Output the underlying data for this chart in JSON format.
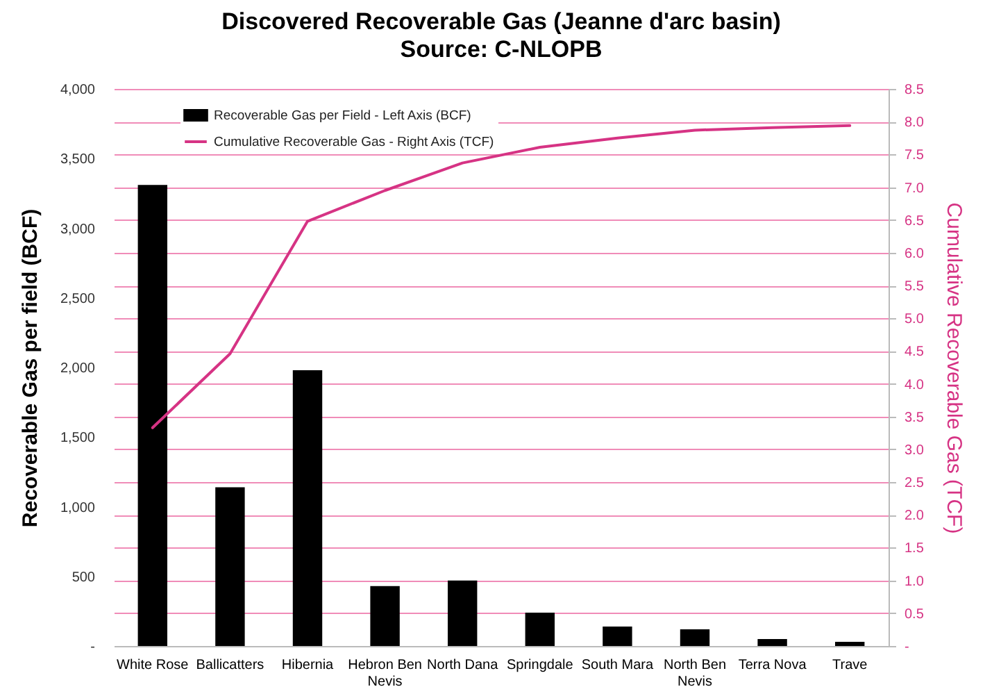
{
  "chart_data": {
    "type": "bar",
    "title": "Discovered Recoverable Gas (Jeanne d'arc basin)",
    "subtitle": "Source:  C-NLOPB",
    "ylabel": "Recoverable Gas per field (BCF)",
    "y2label": "Cumulative Recoverable Gas (TCF)",
    "categories": [
      "White Rose",
      "Ballicatters",
      "Hibernia",
      "Hebron Ben Nevis",
      "North Dana",
      "Springdale",
      "South Mara",
      "North Ben Nevis",
      "Terra Nova",
      "Trave"
    ],
    "series": [
      {
        "name": "Recoverable Gas per Field - Left Axis (BCF)",
        "color": "#000000",
        "values": [
          3310,
          1140,
          1980,
          430,
          470,
          240,
          140,
          120,
          50,
          30
        ]
      },
      {
        "name": "Cumulative Recoverable Gas - Right Axis (TCF)",
        "type": "line",
        "axis": "y2",
        "color": "#d63384",
        "values": [
          3.33,
          4.46,
          6.48,
          6.95,
          7.37,
          7.61,
          7.75,
          7.87,
          7.91,
          7.94
        ]
      }
    ],
    "ylim": [
      0,
      4000
    ],
    "yticks": [
      {
        "value": 0,
        "label": "-"
      },
      {
        "value": 500,
        "label": "500"
      },
      {
        "value": 1000,
        "label": "1,000"
      },
      {
        "value": 1500,
        "label": "1,500"
      },
      {
        "value": 2000,
        "label": "2,000"
      },
      {
        "value": 2500,
        "label": "2,500"
      },
      {
        "value": 3000,
        "label": "3,000"
      },
      {
        "value": 3500,
        "label": "3,500"
      },
      {
        "value": 4000,
        "label": "4,000"
      }
    ],
    "y2lim": [
      0,
      8.5
    ],
    "y2ticks": [
      {
        "value": 0,
        "label": "-"
      },
      {
        "value": 0.5,
        "label": "0.5"
      },
      {
        "value": 1,
        "label": "1.0"
      },
      {
        "value": 1.5,
        "label": "1.5"
      },
      {
        "value": 2,
        "label": "2.0"
      },
      {
        "value": 2.5,
        "label": "2.5"
      },
      {
        "value": 3,
        "label": "3.0"
      },
      {
        "value": 3.5,
        "label": "3.5"
      },
      {
        "value": 4,
        "label": "4.0"
      },
      {
        "value": 4.5,
        "label": "4.5"
      },
      {
        "value": 5,
        "label": "5.0"
      },
      {
        "value": 5.5,
        "label": "5.5"
      },
      {
        "value": 6,
        "label": "6.0"
      },
      {
        "value": 6.5,
        "label": "6.5"
      },
      {
        "value": 7,
        "label": "7.0"
      },
      {
        "value": 7.5,
        "label": "7.5"
      },
      {
        "value": 8,
        "label": "8.0"
      },
      {
        "value": 8.5,
        "label": "8.5"
      }
    ],
    "grid": true,
    "legend": "top left",
    "marker": "none",
    "line_style": "solid"
  }
}
